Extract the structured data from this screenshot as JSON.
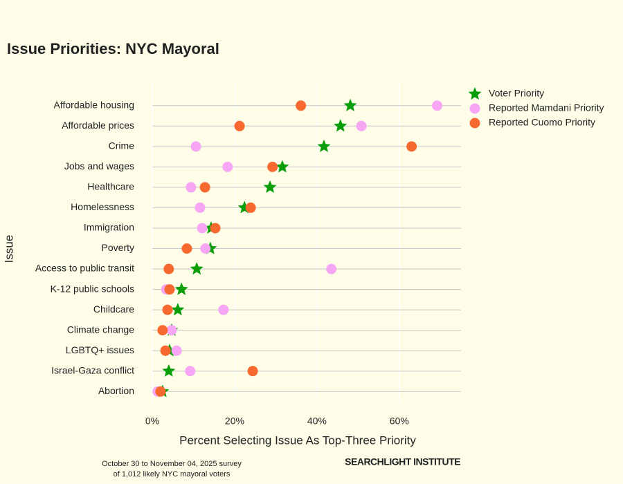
{
  "chart_data": {
    "type": "dot",
    "title": "Issue Priorities: NYC Mayoral",
    "x_label": "Percent Selecting Issue As Top-Three Priority",
    "y_label": "Issue",
    "footnote": [
      "October 30 to November 04, 2025 survey",
      "of 1,012 likely NYC mayoral voters"
    ],
    "brand": "SEARCHLIGHT INSTITUTE",
    "categories": [
      "Affordable housing",
      "Affordable prices",
      "Crime",
      "Jobs and wages",
      "Healthcare",
      "Homelessness",
      "Immigration",
      "Poverty",
      "Access to public transit",
      "K-12 public schools",
      "Childcare",
      "Climate change",
      "LGBTQ+ issues",
      "Israel-Gaza conflict",
      "Abortion"
    ],
    "series": [
      {
        "name": "Voter Priority",
        "color": "#0a9e0a",
        "marker": "star",
        "values": [
          48.1,
          45.7,
          41.7,
          31.6,
          28.6,
          22.4,
          14.3,
          14.1,
          10.8,
          7.1,
          6.2,
          4.7,
          4.2,
          4.0,
          2.5
        ]
      },
      {
        "name": "Reported Mamdani Priority",
        "color": "#f7a6f5",
        "marker": "circle",
        "values": [
          69.2,
          50.8,
          10.6,
          18.3,
          9.4,
          11.6,
          12.1,
          12.9,
          43.5,
          3.4,
          17.3,
          4.7,
          5.9,
          9.2,
          1.3
        ]
      },
      {
        "name": "Reported Cuomo Priority",
        "color": "#f7692f",
        "marker": "circle",
        "values": [
          36.1,
          21.2,
          63.0,
          29.2,
          12.8,
          23.9,
          15.3,
          8.4,
          4.0,
          4.2,
          3.7,
          2.5,
          3.2,
          24.4,
          2.0
        ]
      }
    ],
    "xlim": [
      0,
      75
    ],
    "xticks": [
      {
        "value": 0,
        "label": "0%"
      },
      {
        "value": 20,
        "label": "20%"
      },
      {
        "value": 40,
        "label": "40%"
      },
      {
        "value": 60,
        "label": "60%"
      }
    ],
    "grid": true
  }
}
